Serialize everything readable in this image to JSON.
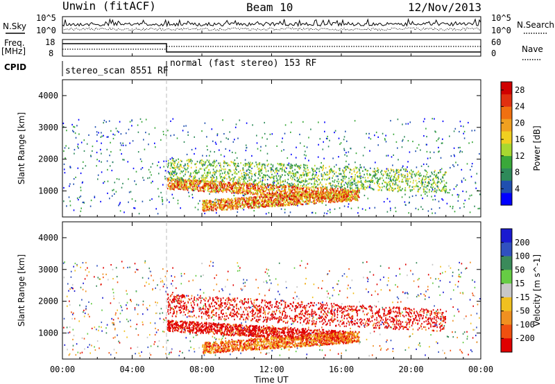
{
  "header": {
    "station": "Unwin (fitACF)",
    "beam": "Beam 10",
    "date": "12/Nov/2013"
  },
  "noise_panel": {
    "left_label": "N.Sky",
    "right_label": "N.Search",
    "left_ticks": [
      "10^5",
      "10^0"
    ],
    "right_ticks": [
      "10^5",
      "10^0"
    ]
  },
  "freq_panel": {
    "left_label_top": "Freq.",
    "left_label_bottom": "[MHz]",
    "left_ticks": [
      "18",
      "8"
    ],
    "right_label": "Nave",
    "right_ticks": [
      "60",
      "0"
    ]
  },
  "cpid_panel": {
    "label": "CPID",
    "segments": [
      {
        "text": "stereo_scan 8551 RF",
        "start_hour": 0,
        "end_hour": 6
      },
      {
        "text": "normal (fast stereo) 153 RF",
        "start_hour": 6,
        "end_hour": 24
      }
    ]
  },
  "chart_data": [
    {
      "type": "heatmap",
      "title": "",
      "xlabel": "Time UT",
      "ylabel": "Slant Range [km]",
      "x_ticks": [
        "00:00",
        "04:00",
        "08:00",
        "12:00",
        "16:00",
        "20:00",
        "00:00"
      ],
      "xlim_hours": [
        0,
        24
      ],
      "y_ticks": [
        1000,
        2000,
        3000,
        4000
      ],
      "ylim": [
        180,
        4500
      ],
      "colorbar": {
        "label": "Power [dB]",
        "ticks": [
          4,
          8,
          12,
          16,
          20,
          24,
          28
        ],
        "range": [
          0,
          30
        ],
        "colors": [
          "#0000ff",
          "#1f4fb0",
          "#2e8a5a",
          "#3aa83a",
          "#a8d830",
          "#f0d020",
          "#f0a020",
          "#f07010",
          "#e03010",
          "#d00000"
        ]
      },
      "features": [
        {
          "name": "main-band",
          "start_hour": 6,
          "end_hour": 16.5,
          "range_start": 1250,
          "range_end": 900,
          "level": "high"
        },
        {
          "name": "lower-band",
          "start_hour": 8,
          "end_hour": 17,
          "range_start": 550,
          "range_end": 900,
          "level": "high"
        },
        {
          "name": "upper-band",
          "start_hour": 6,
          "end_hour": 22,
          "range_start": 1700,
          "range_end": 1300,
          "level": "medium"
        }
      ]
    },
    {
      "type": "heatmap",
      "title": "",
      "xlabel": "Time UT",
      "ylabel": "Slant Range [km]",
      "x_ticks": [
        "00:00",
        "04:00",
        "08:00",
        "12:00",
        "16:00",
        "20:00",
        "00:00"
      ],
      "xlim_hours": [
        0,
        24
      ],
      "y_ticks": [
        1000,
        2000,
        3000,
        4000
      ],
      "ylim": [
        180,
        4500
      ],
      "colorbar": {
        "label": "Velocity [m s^-1]",
        "ticks": [
          200,
          100,
          50,
          15,
          -15,
          -50,
          -100,
          -200
        ],
        "range": [
          -250,
          250
        ],
        "colors": [
          "#1a1ad0",
          "#3050c0",
          "#3a8a5a",
          "#66cc44",
          "#c8c8c8",
          "#f0c020",
          "#f09020",
          "#f05010",
          "#e00000"
        ]
      },
      "features": [
        {
          "name": "main-band",
          "start_hour": 6,
          "end_hour": 16.5,
          "range_start": 1250,
          "range_end": 900,
          "level": "negative"
        },
        {
          "name": "lower-band",
          "start_hour": 8,
          "end_hour": 17,
          "range_start": 550,
          "range_end": 900,
          "level": "mixed"
        },
        {
          "name": "upper-band",
          "start_hour": 6,
          "end_hour": 22,
          "range_start": 1900,
          "range_end": 1400,
          "level": "negative"
        }
      ]
    }
  ]
}
